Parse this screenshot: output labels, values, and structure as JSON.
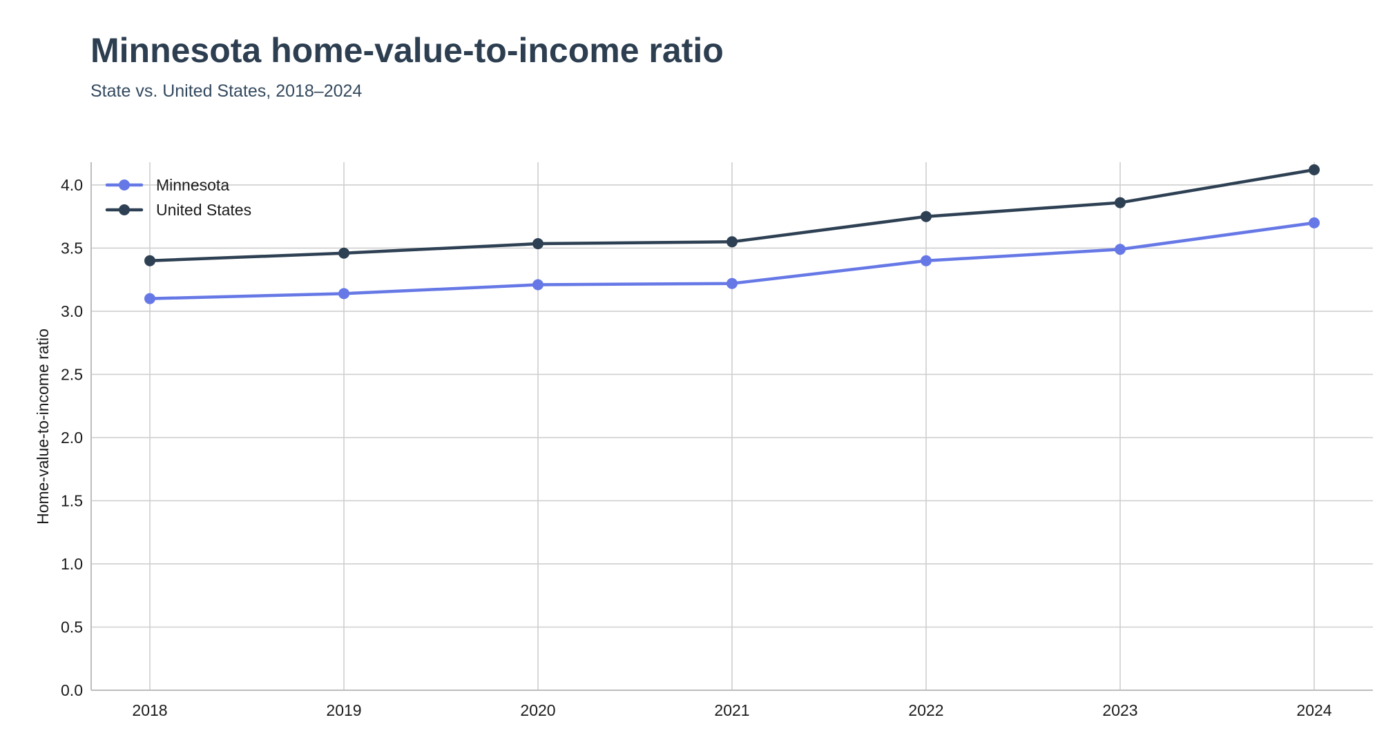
{
  "chart_data": {
    "type": "line",
    "title": "Minnesota home-value-to-income ratio",
    "subtitle": "State vs. United States, 2018–2024",
    "xlabel": "",
    "ylabel": "Home-value-to-income ratio",
    "x": [
      2018,
      2019,
      2020,
      2021,
      2022,
      2023,
      2024
    ],
    "x_tick_labels": [
      "2018",
      "2019",
      "2020",
      "2021",
      "2022",
      "2023",
      "2024"
    ],
    "y_ticks": [
      0.0,
      0.5,
      1.0,
      1.5,
      2.0,
      2.5,
      3.0,
      3.5,
      4.0
    ],
    "y_tick_labels": [
      "0.0",
      "0.5",
      "1.0",
      "1.5",
      "2.0",
      "2.5",
      "3.0",
      "3.5",
      "4.0"
    ],
    "ylim": [
      0,
      4.18
    ],
    "grid": true,
    "legend_position": "top-left",
    "series": [
      {
        "name": "Minnesota",
        "color": "#6678e6",
        "marker": "circle",
        "values": [
          3.1,
          3.14,
          3.21,
          3.22,
          3.4,
          3.49,
          3.7
        ]
      },
      {
        "name": "United States",
        "color": "#2e4053",
        "marker": "circle",
        "values": [
          3.4,
          3.46,
          3.535,
          3.55,
          3.75,
          3.86,
          4.12
        ]
      }
    ]
  }
}
